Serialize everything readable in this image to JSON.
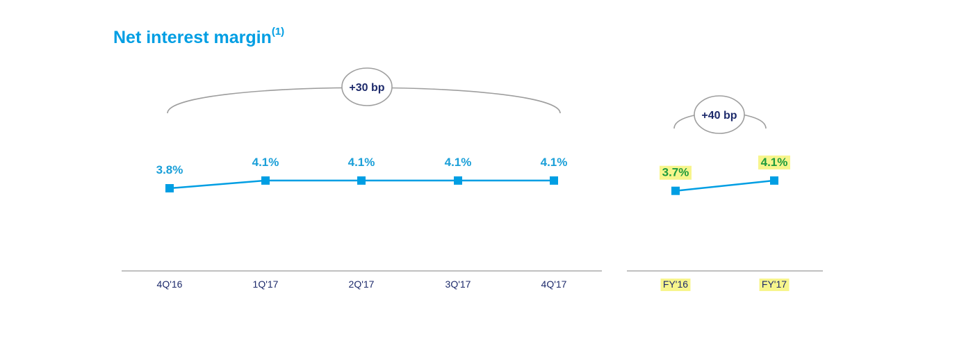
{
  "title": "Net interest margin",
  "title_footnote": "(1)",
  "colors": {
    "title": "#009ee3",
    "line": "#009ee3",
    "label_quarterly": "#1a9fd8",
    "label_annual": "#1e9b3d",
    "highlight": "#f7f58c",
    "axis_text": "#1d2a6b",
    "bracket": "#9e9e9e",
    "callout_text": "#1d2a6b"
  },
  "chart_data": [
    {
      "type": "line",
      "categories": [
        "4Q'16",
        "1Q'17",
        "2Q'17",
        "3Q'17",
        "4Q'17"
      ],
      "values": [
        3.8,
        4.1,
        4.1,
        4.1,
        4.1
      ],
      "labels": [
        "3.8%",
        "4.1%",
        "4.1%",
        "4.1%",
        "4.1%"
      ],
      "annotation": "+30 bp",
      "xlabel": "",
      "ylabel": ""
    },
    {
      "type": "line",
      "categories": [
        "FY'16",
        "FY'17"
      ],
      "values": [
        3.7,
        4.1
      ],
      "labels": [
        "3.7%",
        "4.1%"
      ],
      "annotation": "+40 bp",
      "highlighted": true,
      "xlabel": "",
      "ylabel": ""
    }
  ]
}
